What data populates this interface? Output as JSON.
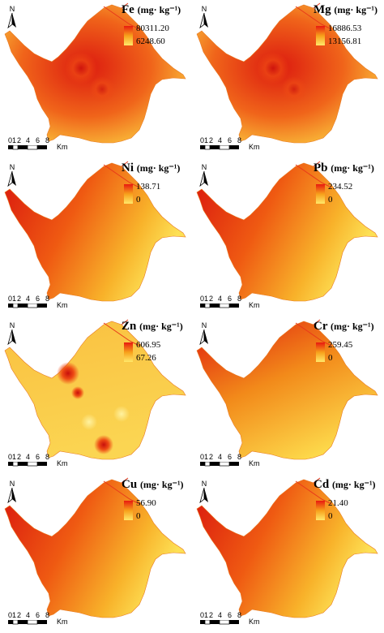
{
  "north_label": "N",
  "scale": {
    "ticks": [
      "0",
      "1",
      "2",
      "4",
      "6",
      "8"
    ],
    "unit": "Km"
  },
  "unit_label": "(mg· kg⁻¹)",
  "panels": [
    {
      "element": "Fe",
      "max": "80311.20",
      "min": "6248.60"
    },
    {
      "element": "Mg",
      "max": "16886.53",
      "min": "13156.81"
    },
    {
      "element": "Ni",
      "max": "138.71",
      "min": "0"
    },
    {
      "element": "Pb",
      "max": "234.52",
      "min": "0"
    },
    {
      "element": "Zn",
      "max": "606.95",
      "min": "67.26"
    },
    {
      "element": "Cr",
      "max": "259.45",
      "min": "0"
    },
    {
      "element": "Cu",
      "max": "56.90",
      "min": "0"
    },
    {
      "element": "Cd",
      "max": "21.40",
      "min": "0"
    }
  ],
  "colors": {
    "high": "#e8190f",
    "mid": "#f7a01a",
    "low": "#ffe86a"
  }
}
